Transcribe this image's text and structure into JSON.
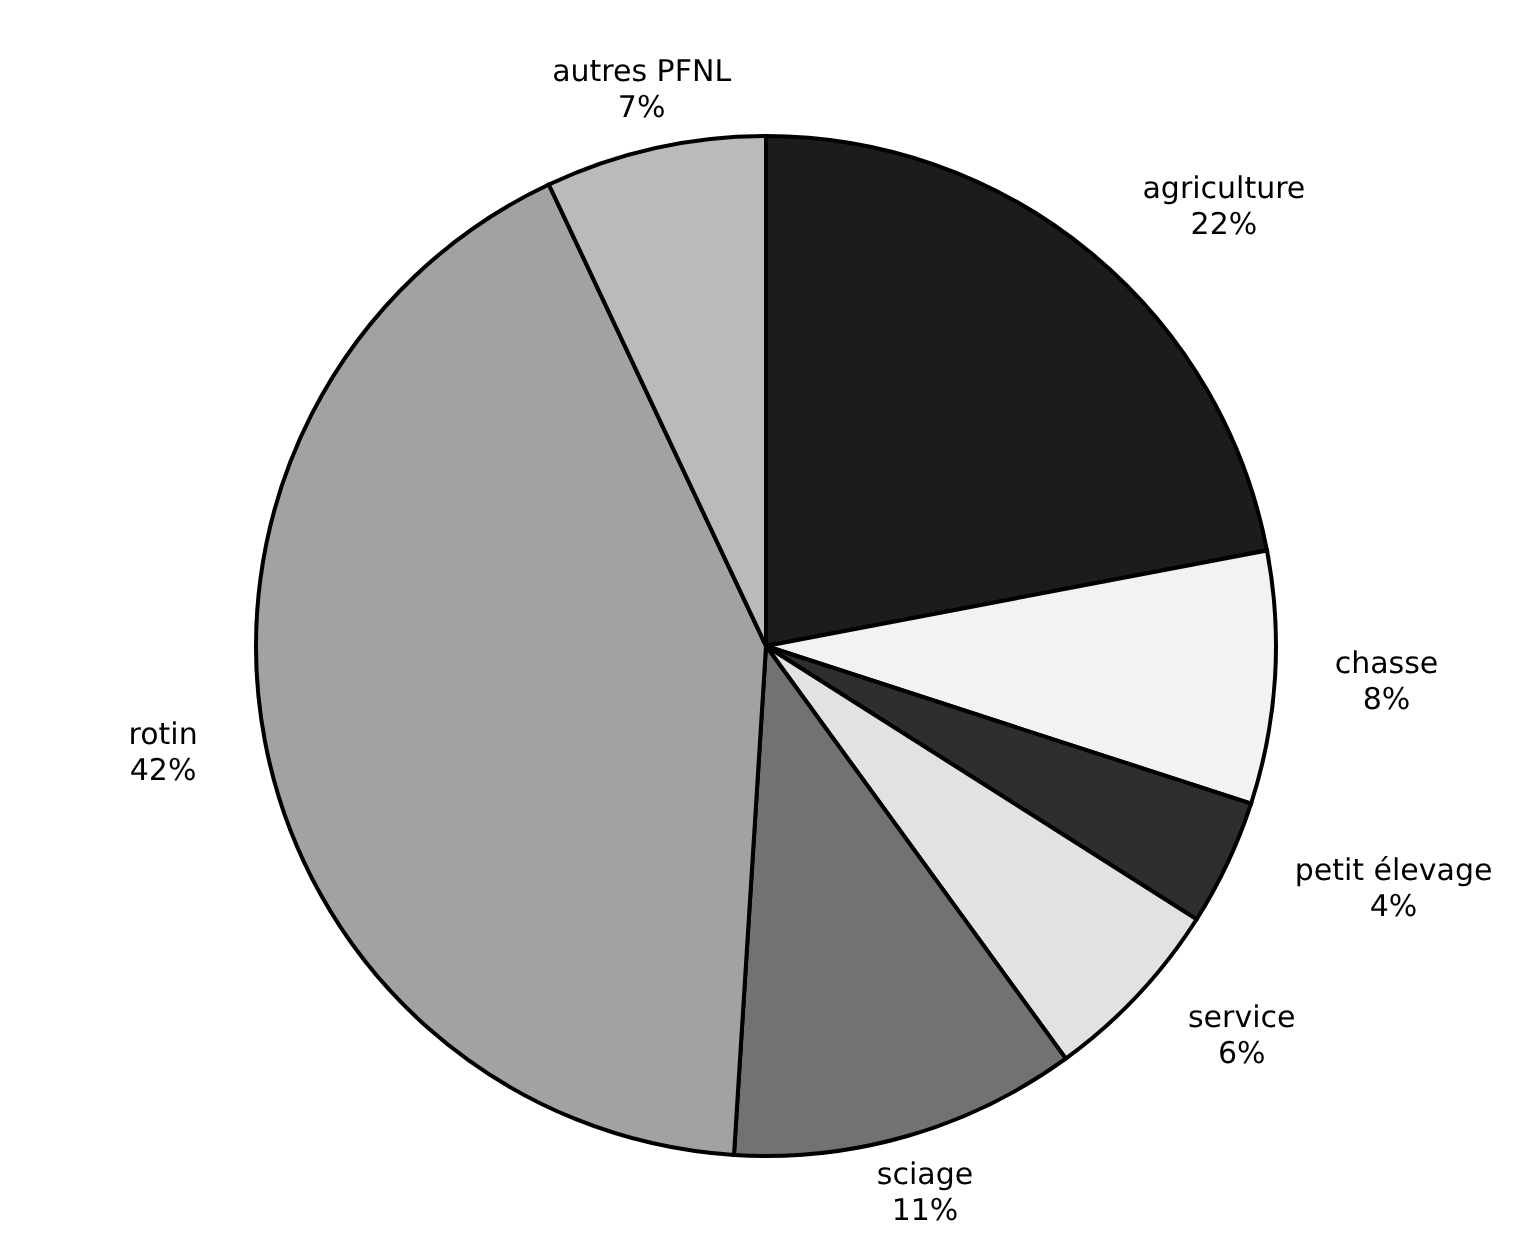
{
  "chart_data": {
    "type": "pie",
    "categories": [
      "agriculture",
      "chasse",
      "petit élevage",
      "service",
      "sciage",
      "rotin",
      "autres PFNL"
    ],
    "values": [
      22,
      8,
      4,
      6,
      11,
      42,
      7
    ],
    "colors": [
      "#1c1c1c",
      "#f2f2f2",
      "#2e2e2e",
      "#e2e2e2",
      "#727272",
      "#a2a2a2",
      "#bababa"
    ],
    "value_labels": [
      "22%",
      "8%",
      "4%",
      "6%",
      "11%",
      "42%",
      "7%"
    ],
    "legend": false
  }
}
